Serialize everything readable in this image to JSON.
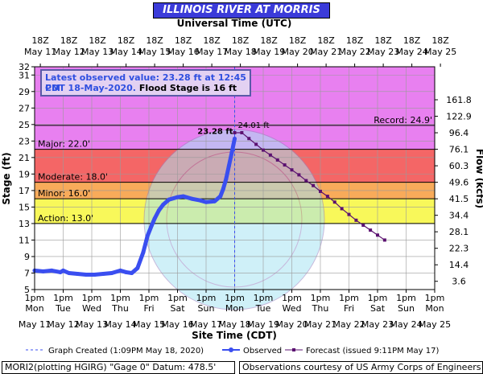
{
  "header": {
    "title": "ILLINOIS RIVER AT MORRIS",
    "top_axis_title": "Universal Time (UTC)"
  },
  "latest_box": {
    "line1": "Latest observed value: 23.28 ft at 12:45 PM",
    "line2_prefix": "CDT 18-May-2020.",
    "line2_suffix": " Flood Stage is 16 ft"
  },
  "footer": {
    "graph_created": "Graph Created (1:09PM May 18, 2020)",
    "observed": "Observed",
    "forecast": "Forecast (issued 9:11PM May 17)",
    "station": "MORI2(plotting HGIRG) \"Gage 0\" Datum: 478.5'",
    "courtesy": "Observations courtesy of US Army Corps of Engineers"
  },
  "chart_data": {
    "type": "line",
    "title": "ILLINOIS RIVER AT MORRIS",
    "xlabel": "Site Time (CDT)",
    "ylabel": "Stage (ft)",
    "y2label": "Flow (kcfs)",
    "ylim": [
      5,
      32
    ],
    "y_ticks": [
      5,
      7,
      9,
      11,
      13,
      15,
      17,
      19,
      21,
      23,
      25,
      27,
      29,
      31,
      32
    ],
    "top_axis": {
      "title": "Universal Time (UTC)",
      "hour_labels": [
        "18Z",
        "18Z",
        "18Z",
        "18Z",
        "18Z",
        "18Z",
        "18Z",
        "18Z",
        "18Z",
        "18Z",
        "18Z",
        "18Z",
        "18Z",
        "18Z",
        "18Z"
      ],
      "date_labels": [
        "May 11",
        "May 12",
        "May 13",
        "May 14",
        "May 15",
        "May 16",
        "May 17",
        "May 18",
        "May 19",
        "May 20",
        "May 21",
        "May 22",
        "May 23",
        "May 24",
        "May 25"
      ]
    },
    "bottom_axis": {
      "time_labels": [
        "1pm",
        "1pm",
        "1pm",
        "1pm",
        "1pm",
        "1pm",
        "1pm",
        "1pm",
        "1pm",
        "1pm",
        "1pm",
        "1pm",
        "1pm",
        "1pm",
        "1pm"
      ],
      "day_labels": [
        "Mon",
        "Tue",
        "Wed",
        "Thu",
        "Fri",
        "Sat",
        "Sun",
        "Mon",
        "Tue",
        "Wed",
        "Thu",
        "Fri",
        "Sat",
        "Sun",
        "Mon"
      ],
      "date_labels": [
        "May 11",
        "May 12",
        "May 13",
        "May 14",
        "May 15",
        "May 16",
        "May 17",
        "May 18",
        "May 19",
        "May 20",
        "May 21",
        "May 22",
        "May 23",
        "May 24",
        "May 25"
      ]
    },
    "flow_ticks": [
      {
        "stage": 6,
        "label": "3.6"
      },
      {
        "stage": 8,
        "label": "14.4"
      },
      {
        "stage": 10,
        "label": "22.3"
      },
      {
        "stage": 12,
        "label": "28.1"
      },
      {
        "stage": 14,
        "label": "34.4"
      },
      {
        "stage": 16,
        "label": "41.5"
      },
      {
        "stage": 18,
        "label": "49.6"
      },
      {
        "stage": 20,
        "label": "60.3"
      },
      {
        "stage": 22,
        "label": "76.1"
      },
      {
        "stage": 24,
        "label": "96.4"
      },
      {
        "stage": 26,
        "label": "122.9"
      },
      {
        "stage": 28,
        "label": "161.8"
      }
    ],
    "flood_categories": [
      {
        "name": "Major",
        "from": 22,
        "to": 32,
        "color": "#e880f0",
        "label": "Major: 22.0'"
      },
      {
        "name": "Moderate",
        "from": 18,
        "to": 22,
        "color": "#f46666",
        "label": "Moderate: 18.0'"
      },
      {
        "name": "Minor",
        "from": 16,
        "to": 18,
        "color": "#f8ab5a",
        "label": "Minor: 16.0'"
      },
      {
        "name": "Action",
        "from": 13,
        "to": 16,
        "color": "#f8f85a",
        "label": "Action: 13.0'"
      }
    ],
    "record": {
      "value": 24.9,
      "label": "Record: 24.9'"
    },
    "graph_created_day": 7.0,
    "observed": {
      "name": "Observed",
      "color": "#3a4ef0",
      "label": "23.28 ft",
      "points": [
        [
          0.0,
          7.3
        ],
        [
          0.3,
          7.2
        ],
        [
          0.6,
          7.3
        ],
        [
          0.9,
          7.1
        ],
        [
          1.0,
          7.3
        ],
        [
          1.2,
          7.0
        ],
        [
          1.5,
          6.9
        ],
        [
          1.8,
          6.8
        ],
        [
          2.1,
          6.8
        ],
        [
          2.4,
          6.9
        ],
        [
          2.7,
          7.0
        ],
        [
          3.0,
          7.3
        ],
        [
          3.2,
          7.1
        ],
        [
          3.4,
          7.0
        ],
        [
          3.6,
          7.6
        ],
        [
          3.8,
          9.5
        ],
        [
          3.95,
          11.5
        ],
        [
          4.1,
          12.8
        ],
        [
          4.2,
          13.6
        ],
        [
          4.35,
          14.6
        ],
        [
          4.5,
          15.3
        ],
        [
          4.7,
          15.9
        ],
        [
          5.0,
          16.2
        ],
        [
          5.2,
          16.3
        ],
        [
          5.5,
          16.0
        ],
        [
          5.8,
          15.8
        ],
        [
          6.0,
          15.6
        ],
        [
          6.3,
          15.7
        ],
        [
          6.5,
          16.3
        ],
        [
          6.6,
          17.2
        ],
        [
          6.7,
          18.4
        ],
        [
          6.8,
          20.0
        ],
        [
          6.9,
          21.6
        ],
        [
          7.0,
          23.28
        ]
      ]
    },
    "forecast": {
      "name": "Forecast (issued 9:11PM May 17)",
      "color": "#5b1170",
      "label": "24.01 ft",
      "points": [
        [
          7.0,
          24.01
        ],
        [
          7.25,
          24.01
        ],
        [
          7.5,
          23.3
        ],
        [
          7.75,
          22.6
        ],
        [
          8.0,
          21.9
        ],
        [
          8.25,
          21.3
        ],
        [
          8.5,
          20.7
        ],
        [
          8.75,
          20.1
        ],
        [
          9.0,
          19.5
        ],
        [
          9.25,
          18.9
        ],
        [
          9.5,
          18.2
        ],
        [
          9.75,
          17.6
        ],
        [
          10.0,
          16.9
        ],
        [
          10.25,
          16.3
        ],
        [
          10.5,
          15.6
        ],
        [
          10.75,
          14.8
        ],
        [
          11.0,
          14.1
        ],
        [
          11.25,
          13.4
        ],
        [
          11.5,
          12.8
        ],
        [
          11.75,
          12.2
        ],
        [
          12.0,
          11.6
        ],
        [
          12.25,
          11.0
        ]
      ]
    }
  }
}
